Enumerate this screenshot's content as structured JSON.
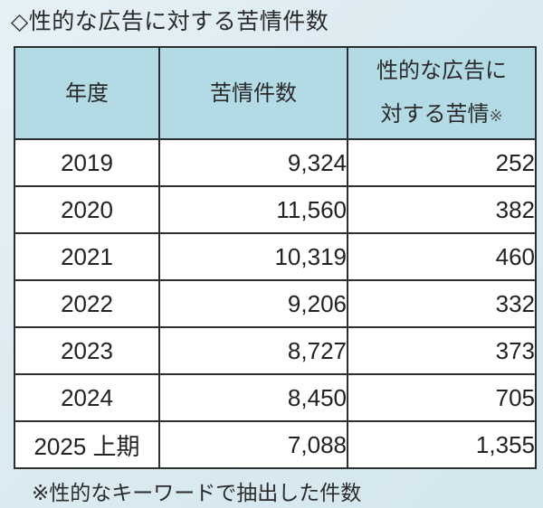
{
  "title": "◇性的な広告に対する苦情件数",
  "table": {
    "headers": {
      "year": "年度",
      "complaints": "苦情件数",
      "sexual_ad_line1": "性的な広告に",
      "sexual_ad_line2": "対する苦情",
      "sexual_ad_mark": "※"
    },
    "rows": [
      {
        "year": "2019",
        "complaints": "9,324",
        "sexual_ad": "252"
      },
      {
        "year": "2020",
        "complaints": "11,560",
        "sexual_ad": "382"
      },
      {
        "year": "2021",
        "complaints": "10,319",
        "sexual_ad": "460"
      },
      {
        "year": "2022",
        "complaints": "9,206",
        "sexual_ad": "332"
      },
      {
        "year": "2023",
        "complaints": "8,727",
        "sexual_ad": "373"
      },
      {
        "year": "2024",
        "complaints": "8,450",
        "sexual_ad": "705"
      },
      {
        "year": "2025 上期",
        "complaints": "7,088",
        "sexual_ad": "1,355"
      }
    ]
  },
  "footnote": "※性的なキーワードで抽出した件数",
  "colors": {
    "header_bg": "#b2dbe5",
    "border": "#2e2e2e",
    "page_bg": "#dbeaf1"
  }
}
